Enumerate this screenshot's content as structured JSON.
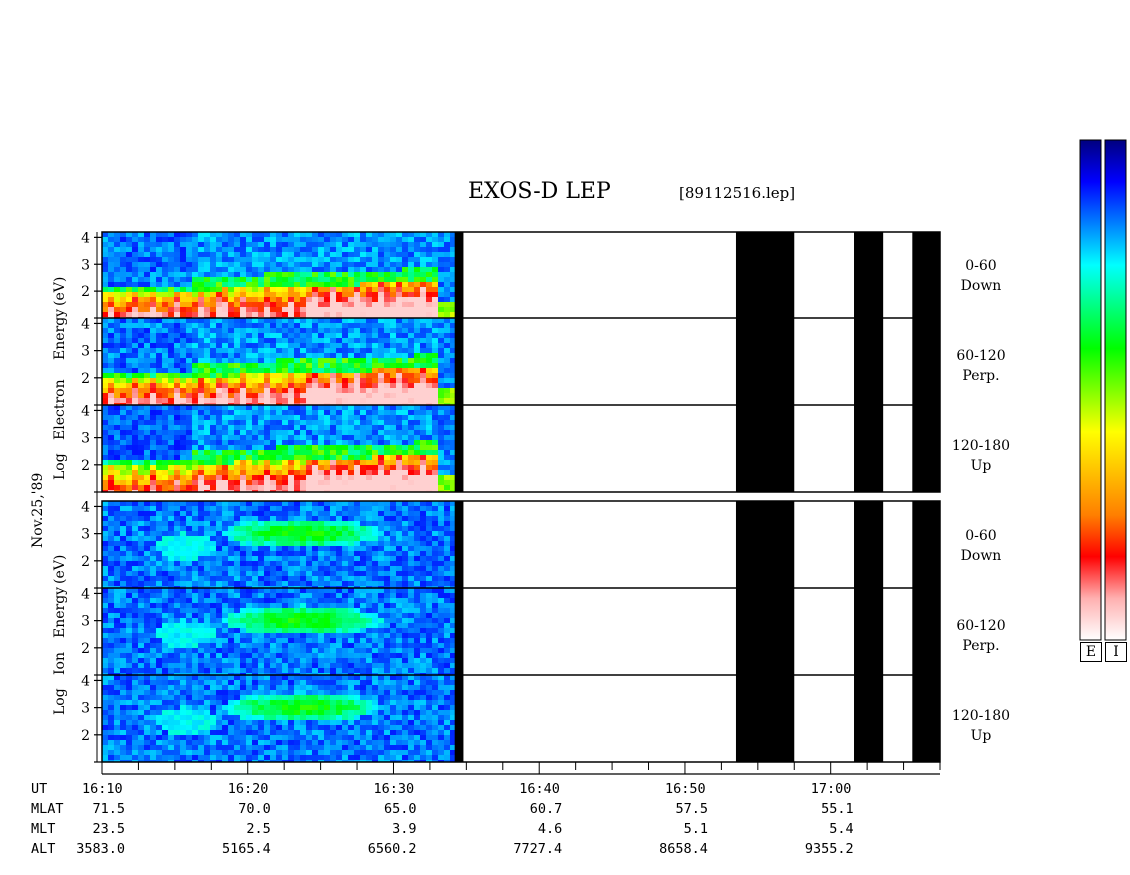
{
  "title": "EXOS-D LEP",
  "file_name": "[89112516.lep]",
  "date_label": "Nov.25,'89",
  "vertical_labels": {
    "electron": [
      "Log",
      "Electron",
      "Energy",
      "(eV)"
    ],
    "ion": [
      "Log",
      "Ion",
      "Energy",
      "(eV)"
    ]
  },
  "colorbar_labels": [
    "E",
    "I"
  ],
  "colors": {
    "colorbar_stops": [
      "#00007f",
      "#0000ff",
      "#007fff",
      "#00ffff",
      "#00ff7f",
      "#00ff00",
      "#7fff00",
      "#ffff00",
      "#ffbf00",
      "#ff7f00",
      "#ff0000",
      "#ffb0b0",
      "#ffffff"
    ],
    "no_data": "#000000"
  },
  "chart_data": {
    "type": "heatmap",
    "y_axis": {
      "label": "Log Energy (eV)",
      "ticks": [
        "4",
        "3",
        "2"
      ],
      "range": [
        1,
        4.2
      ]
    },
    "x_axis": {
      "tick_labels": [
        "16:10",
        "16:20",
        "16:30",
        "16:40",
        "16:50",
        "17:00"
      ],
      "tick_minutes": [
        0,
        10,
        20,
        30,
        40,
        50
      ],
      "range_minutes": [
        0,
        57.5
      ],
      "minor_tick_interval_minutes": 2.5
    },
    "panels": [
      {
        "species": "Electron",
        "pitch_angle": "0-60",
        "direction": "Down"
      },
      {
        "species": "Electron",
        "pitch_angle": "60-120",
        "direction": "Perp."
      },
      {
        "species": "Electron",
        "pitch_angle": "120-180",
        "direction": "Up"
      },
      {
        "species": "Ion",
        "pitch_angle": "0-60",
        "direction": "Down"
      },
      {
        "species": "Ion",
        "pitch_angle": "60-120",
        "direction": "Perp."
      },
      {
        "species": "Ion",
        "pitch_angle": "120-180",
        "direction": "Up"
      }
    ],
    "data_end_minutes": 24.2,
    "no_data_intervals_minutes": [
      [
        24.2,
        24.8
      ],
      [
        43.5,
        47.5
      ],
      [
        51.6,
        53.6
      ],
      [
        55.6,
        57.5
      ]
    ],
    "orbit_rows": [
      {
        "label": "UT",
        "values": [
          "16:10",
          "16:20",
          "16:30",
          "16:40",
          "16:50",
          "17:00"
        ]
      },
      {
        "label": "MLAT",
        "values": [
          "71.5",
          "70.0",
          "65.0",
          "60.7",
          "57.5",
          "55.1"
        ]
      },
      {
        "label": "MLT",
        "values": [
          "23.5",
          "2.5",
          "3.9",
          "4.6",
          "5.1",
          "5.4"
        ]
      },
      {
        "label": "ALT",
        "values": [
          "3583.0",
          "5165.4",
          "6560.2",
          "7727.4",
          "8658.4",
          "9355.2"
        ]
      }
    ]
  }
}
